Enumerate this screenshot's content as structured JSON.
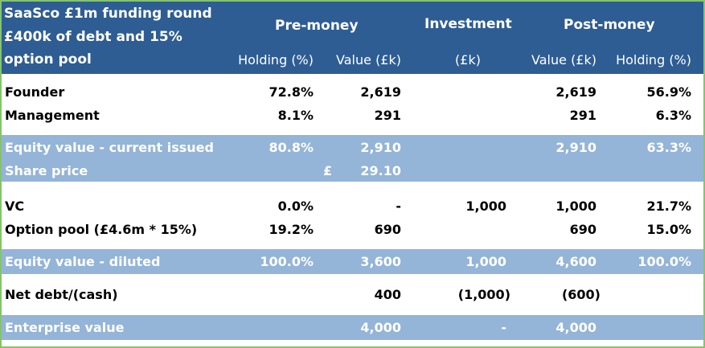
{
  "header": {
    "title_lines": [
      "SaaSco £1m funding round",
      "£400k of debt and 15%",
      "option pool"
    ],
    "groups": {
      "pre": "Pre-money",
      "investment": "Investment",
      "post": "Post-money"
    },
    "subheaders": [
      "Holding (%)",
      "Value (£k)",
      "(£k)",
      "Value (£k)",
      "Holding (%)"
    ]
  },
  "rows": [
    {
      "label": "Founder",
      "pre_holding": "72.8%",
      "pre_value": "2,619",
      "investment": "",
      "post_value": "2,619",
      "post_holding": "56.9%"
    },
    {
      "label": "Management",
      "pre_holding": "8.1%",
      "pre_value": "291",
      "investment": "",
      "post_value": "291",
      "post_holding": "6.3%"
    },
    {
      "label": "Equity value - current issued",
      "pre_holding": "80.8%",
      "pre_value": "2,910",
      "investment": "",
      "post_value": "2,910",
      "post_holding": "63.3%"
    },
    {
      "label": "Share price",
      "pre_holding": "",
      "currency": "£",
      "pre_value": "29.10",
      "investment": "",
      "post_value": "",
      "post_holding": ""
    },
    {
      "label": "VC",
      "pre_holding": "0.0%",
      "pre_value": "-",
      "investment": "1,000",
      "post_value": "1,000",
      "post_holding": "21.7%"
    },
    {
      "label": "Option pool (£4.6m * 15%)",
      "pre_holding": "19.2%",
      "pre_value": "690",
      "investment": "",
      "post_value": "690",
      "post_holding": "15.0%"
    },
    {
      "label": "Equity value - diluted",
      "pre_holding": "100.0%",
      "pre_value": "3,600",
      "investment": "1,000",
      "post_value": "4,600",
      "post_holding": "100.0%"
    },
    {
      "label": "Net debt/(cash)",
      "pre_holding": "",
      "pre_value": "400",
      "investment": "(1,000)",
      "post_value": "(600)",
      "post_holding": ""
    },
    {
      "label": "Enterprise value",
      "pre_holding": "",
      "pre_value": "4,000",
      "investment": "-",
      "post_value": "4,000",
      "post_holding": ""
    }
  ],
  "colors": {
    "header_bg": "#2e5d93",
    "band_bg": "#94b4d8",
    "border": "#84c46a"
  }
}
